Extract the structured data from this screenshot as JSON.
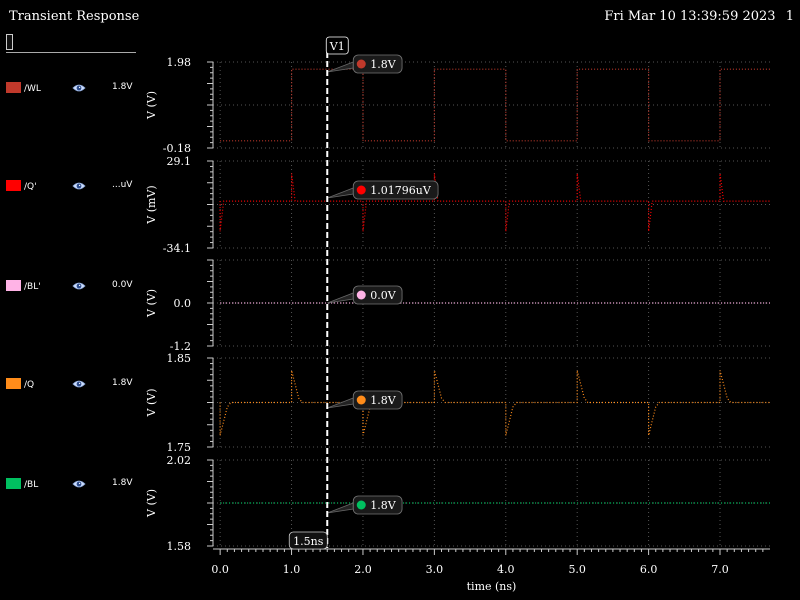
{
  "window": {
    "title": "Transient Response",
    "datetime": "Fri Mar 10 13:39:59 2023",
    "page_index": "1"
  },
  "legend": [
    {
      "name": "/WL",
      "value": "1.8V",
      "color": "#c0392b"
    },
    {
      "name": "/Q'",
      "value": "...uV",
      "color": "#ff0000"
    },
    {
      "name": "/BL'",
      "value": "0.0V",
      "color": "#ffb3e6"
    },
    {
      "name": "/Q",
      "value": "1.8V",
      "color": "#ff8c1a"
    },
    {
      "name": "/BL",
      "value": "1.8V",
      "color": "#00c060"
    }
  ],
  "chart_data": {
    "type": "line",
    "xlabel": "time (ns)",
    "xlim": [
      -0.1,
      7.7
    ],
    "xticks": [
      "0.0",
      "1.0",
      "2.0",
      "3.0",
      "4.0",
      "5.0",
      "6.0",
      "7.0"
    ],
    "marker": {
      "name": "V1",
      "x": 1.5,
      "x_label": "1.5ns"
    },
    "panels": [
      {
        "signal": "/WL",
        "ylabel": "V (V)",
        "ylim": [
          -0.18,
          1.98
        ],
        "ytick_labels": [
          "1.98",
          "-0.18"
        ],
        "color": "#c0392b",
        "cursor_label": "1.8V",
        "x": [
          0,
          1.0,
          1.0,
          2.0,
          2.0,
          3.0,
          3.0,
          4.0,
          4.0,
          5.0,
          5.0,
          6.0,
          6.0,
          7.0,
          7.0,
          7.7
        ],
        "y": [
          0,
          0,
          1.8,
          1.8,
          0,
          0,
          1.8,
          1.8,
          0,
          0,
          1.8,
          1.8,
          0,
          0,
          1.8,
          1.8
        ]
      },
      {
        "signal": "/Q'",
        "ylabel": "V (mV)",
        "ylim": [
          -34.1,
          29.1
        ],
        "ytick_labels": [
          "29.1",
          "-34.1"
        ],
        "color": "#ff0000",
        "cursor_label": "1.01796uV",
        "x": [
          0,
          0,
          0.05,
          1.0,
          1.0,
          1.05,
          2.0,
          2.0,
          2.05,
          3.0,
          3.0,
          3.05,
          4.0,
          4.0,
          4.05,
          5.0,
          5.0,
          5.05,
          6.0,
          6.0,
          6.05,
          7.0,
          7.0,
          7.05,
          7.7
        ],
        "y": [
          0,
          -22,
          0,
          0,
          20,
          0,
          0,
          -22,
          0,
          0,
          20,
          0,
          0,
          -22,
          0,
          0,
          20,
          0,
          0,
          -22,
          0,
          0,
          20,
          0,
          0
        ]
      },
      {
        "signal": "/BL'",
        "ylabel": "V (V)",
        "ylim": [
          -1.2,
          1.2
        ],
        "ytick_labels": [
          "0.0",
          "-1.2"
        ],
        "color": "#ffb3e6",
        "cursor_label": "0.0V",
        "x": [
          0,
          7.7
        ],
        "y": [
          0,
          0
        ]
      },
      {
        "signal": "/Q",
        "ylabel": "V (V)",
        "ylim": [
          1.75,
          1.85
        ],
        "ytick_labels": [
          "1.85",
          "1.75"
        ],
        "color": "#ff8c1a",
        "cursor_label": "1.8V",
        "x": [
          0,
          0,
          0.1,
          0.15,
          1.0,
          1.0,
          1.1,
          1.15,
          2.0,
          2.0,
          2.1,
          2.15,
          3.0,
          3.0,
          3.1,
          3.15,
          4.0,
          4.0,
          4.1,
          4.15,
          5.0,
          5.0,
          5.1,
          5.15,
          6.0,
          6.0,
          6.1,
          6.15,
          7.0,
          7.0,
          7.1,
          7.15,
          7.7
        ],
        "y": [
          1.8,
          1.763,
          1.795,
          1.8,
          1.8,
          1.836,
          1.805,
          1.8,
          1.8,
          1.763,
          1.795,
          1.8,
          1.8,
          1.836,
          1.805,
          1.8,
          1.8,
          1.763,
          1.795,
          1.8,
          1.8,
          1.836,
          1.805,
          1.8,
          1.8,
          1.763,
          1.795,
          1.8,
          1.8,
          1.836,
          1.805,
          1.8,
          1.8
        ]
      },
      {
        "signal": "/BL",
        "ylabel": "V (V)",
        "ylim": [
          1.58,
          2.02
        ],
        "ytick_labels": [
          "2.02",
          "1.58"
        ],
        "color": "#00c060",
        "cursor_label": "1.8V",
        "x": [
          0,
          7.7
        ],
        "y": [
          1.8,
          1.8
        ]
      }
    ]
  }
}
